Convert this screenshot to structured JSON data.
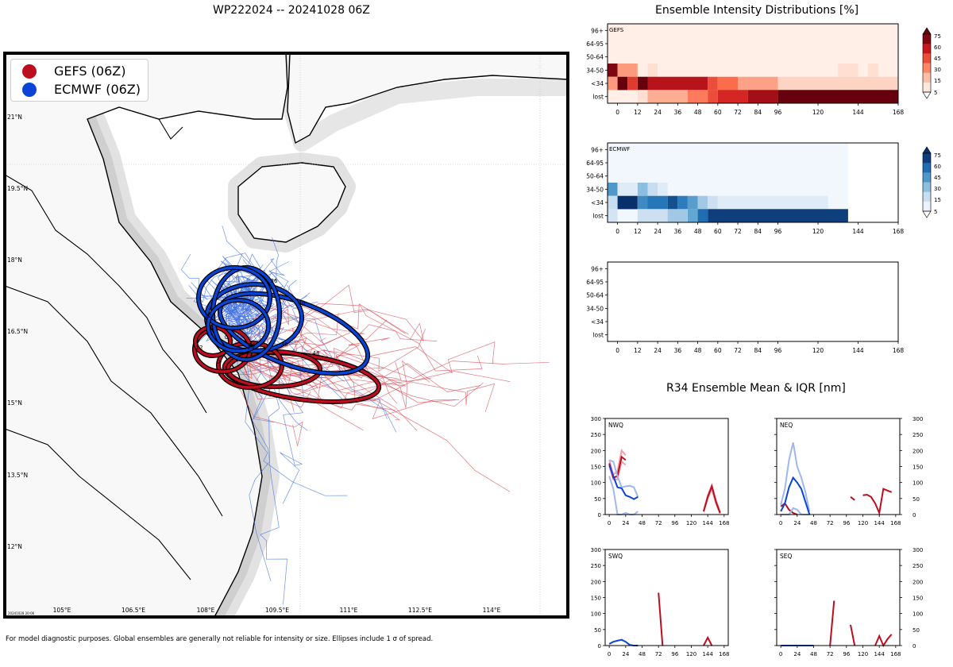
{
  "title": "WP222024 -- 20241028 06Z",
  "footnote": "For model diagnostic purposes. Global ensembles are generally not reliable for intensity or size. Ellipses include 1 σ of spread.",
  "map": {
    "legend": [
      {
        "label": "GEFS (06Z)",
        "color": "#bd0e1f"
      },
      {
        "label": "ECMWF (06Z)",
        "color": "#0a44d6"
      }
    ],
    "lat_labels": [
      "21°N",
      "19.5°N",
      "18°N",
      "16.5°N",
      "15°N",
      "13.5°N",
      "12°N"
    ],
    "lon_labels": [
      "105°E",
      "106.5°E",
      "108°E",
      "109.5°E",
      "111°E",
      "112.5°E",
      "114°E"
    ],
    "stamp": "20241028 20:06",
    "ellipse_labels": {
      "gefs": [
        "0",
        "12",
        "24",
        "36",
        "48"
      ],
      "ecmwf": [
        "0",
        "12",
        "24",
        "36",
        "48"
      ]
    }
  },
  "intensity": {
    "title": "Ensemble Intensity Distributions [%]",
    "categories": [
      "96+",
      "64-95",
      "50-64",
      "34-50",
      "<34",
      "lost"
    ],
    "x_ticks": [
      0,
      12,
      24,
      36,
      48,
      60,
      72,
      84,
      96,
      120,
      144,
      168
    ],
    "colorbar_ticks": [
      75,
      60,
      45,
      30,
      15,
      5
    ],
    "panels": [
      {
        "label": "GEFS",
        "colormap": "reds"
      },
      {
        "label": "ECMWF",
        "colormap": "blues"
      },
      {
        "label": "",
        "colormap": "none"
      }
    ]
  },
  "r34": {
    "title": "R34 Ensemble Mean & IQR [nm]",
    "x_ticks": [
      0,
      24,
      48,
      72,
      96,
      120,
      144,
      168
    ],
    "y_ticks": [
      0,
      50,
      100,
      150,
      200,
      250,
      300
    ],
    "panels": [
      {
        "label": "NWQ"
      },
      {
        "label": "NEQ"
      },
      {
        "label": "SWQ"
      },
      {
        "label": "SEQ"
      }
    ]
  },
  "chart_data": [
    {
      "type": "heatmap",
      "title": "GEFS",
      "x_unit": "forecast hour",
      "y_categories": [
        "96+",
        "64-95",
        "50-64",
        "34-50",
        "<34",
        "lost"
      ],
      "cells": [
        {
          "hours": [
            0,
            6
          ],
          "cat": "34-50",
          "pct": 80
        },
        {
          "hours": [
            6,
            18
          ],
          "cat": "34-50",
          "pct": 30
        },
        {
          "hours": [
            24,
            30
          ],
          "cat": "34-50",
          "pct": 8
        },
        {
          "hours": [
            138,
            150
          ],
          "cat": "34-50",
          "pct": 8
        },
        {
          "hours": [
            156,
            162
          ],
          "cat": "34-50",
          "pct": 8
        },
        {
          "hours": [
            0,
            6
          ],
          "cat": "<34",
          "pct": 30
        },
        {
          "hours": [
            6,
            12
          ],
          "cat": "<34",
          "pct": 85
        },
        {
          "hours": [
            12,
            18
          ],
          "cat": "<34",
          "pct": 55
        },
        {
          "hours": [
            18,
            24
          ],
          "cat": "<34",
          "pct": 85
        },
        {
          "hours": [
            24,
            60
          ],
          "cat": "<34",
          "pct": 68
        },
        {
          "hours": [
            60,
            66
          ],
          "cat": "<34",
          "pct": 50
        },
        {
          "hours": [
            66,
            78
          ],
          "cat": "<34",
          "pct": 42
        },
        {
          "hours": [
            78,
            102
          ],
          "cat": "<34",
          "pct": 28
        },
        {
          "hours": [
            102,
            174
          ],
          "cat": "<34",
          "pct": 12
        },
        {
          "hours": [
            18,
            24
          ],
          "cat": "lost",
          "pct": 8
        },
        {
          "hours": [
            24,
            48
          ],
          "cat": "lost",
          "pct": 25
        },
        {
          "hours": [
            48,
            60
          ],
          "cat": "lost",
          "pct": 38
        },
        {
          "hours": [
            60,
            66
          ],
          "cat": "lost",
          "pct": 50
        },
        {
          "hours": [
            66,
            84
          ],
          "cat": "lost",
          "pct": 60
        },
        {
          "hours": [
            84,
            102
          ],
          "cat": "lost",
          "pct": 72
        },
        {
          "hours": [
            102,
            174
          ],
          "cat": "lost",
          "pct": 88
        }
      ]
    },
    {
      "type": "heatmap",
      "title": "ECMWF",
      "x_unit": "forecast hour",
      "y_categories": [
        "96+",
        "64-95",
        "50-64",
        "34-50",
        "<34",
        "lost"
      ],
      "cells": [
        {
          "hours": [
            0,
            6
          ],
          "cat": "34-50",
          "pct": 50
        },
        {
          "hours": [
            6,
            18
          ],
          "cat": "34-50",
          "pct": 10
        },
        {
          "hours": [
            18,
            24
          ],
          "cat": "34-50",
          "pct": 35
        },
        {
          "hours": [
            24,
            30
          ],
          "cat": "34-50",
          "pct": 20
        },
        {
          "hours": [
            30,
            36
          ],
          "cat": "34-50",
          "pct": 10
        },
        {
          "hours": [
            0,
            6
          ],
          "cat": "<34",
          "pct": 20
        },
        {
          "hours": [
            6,
            18
          ],
          "cat": "<34",
          "pct": 85
        },
        {
          "hours": [
            18,
            24
          ],
          "cat": "<34",
          "pct": 55
        },
        {
          "hours": [
            24,
            36
          ],
          "cat": "<34",
          "pct": 62
        },
        {
          "hours": [
            36,
            42
          ],
          "cat": "<34",
          "pct": 75
        },
        {
          "hours": [
            42,
            48
          ],
          "cat": "<34",
          "pct": 60
        },
        {
          "hours": [
            48,
            54
          ],
          "cat": "<34",
          "pct": 48
        },
        {
          "hours": [
            54,
            60
          ],
          "cat": "<34",
          "pct": 30
        },
        {
          "hours": [
            60,
            66
          ],
          "cat": "<34",
          "pct": 18
        },
        {
          "hours": [
            66,
            132
          ],
          "cat": "<34",
          "pct": 10
        },
        {
          "hours": [
            0,
            6
          ],
          "cat": "lost",
          "pct": 15
        },
        {
          "hours": [
            18,
            36
          ],
          "cat": "lost",
          "pct": 18
        },
        {
          "hours": [
            36,
            48
          ],
          "cat": "lost",
          "pct": 30
        },
        {
          "hours": [
            48,
            54
          ],
          "cat": "lost",
          "pct": 45
        },
        {
          "hours": [
            54,
            60
          ],
          "cat": "lost",
          "pct": 65
        },
        {
          "hours": [
            60,
            144
          ],
          "cat": "lost",
          "pct": 80
        }
      ]
    },
    {
      "type": "heatmap",
      "title": "",
      "y_categories": [
        "96+",
        "64-95",
        "50-64",
        "34-50",
        "<34",
        "lost"
      ],
      "cells": []
    },
    {
      "type": "line",
      "title": "NWQ",
      "ylim": [
        0,
        300
      ],
      "series": [
        {
          "model": "GEFS",
          "x": [
            0,
            6,
            12,
            18,
            24
          ],
          "mean": [
            160,
            115,
            120,
            180,
            170
          ],
          "iqr_low": [
            150,
            110,
            110,
            165,
            155
          ],
          "iqr_high": [
            170,
            125,
            135,
            200,
            185
          ]
        },
        {
          "model": "GEFS",
          "x": [
            138,
            144,
            150,
            156,
            162
          ],
          "mean": [
            10,
            55,
            88,
            40,
            5
          ],
          "iqr_low": [
            8,
            50,
            80,
            35,
            3
          ],
          "iqr_high": [
            12,
            60,
            92,
            45,
            8
          ]
        },
        {
          "model": "ECMWF",
          "x": [
            0,
            6,
            12,
            18,
            24,
            30,
            36,
            42
          ],
          "mean": [
            155,
            120,
            85,
            82,
            60,
            55,
            48,
            55
          ],
          "iqr_low": [
            120,
            80,
            0,
            0,
            5,
            0,
            0,
            10
          ],
          "iqr_high": [
            170,
            165,
            120,
            85,
            88,
            90,
            85,
            55
          ]
        }
      ]
    },
    {
      "type": "line",
      "title": "NEQ",
      "ylim": [
        0,
        300
      ],
      "series": [
        {
          "model": "GEFS",
          "x": [
            0,
            6,
            12,
            18,
            24
          ],
          "mean": [
            25,
            35,
            15,
            5,
            0
          ]
        },
        {
          "model": "GEFS",
          "x": [
            102,
            108
          ],
          "mean": [
            55,
            45
          ]
        },
        {
          "model": "GEFS",
          "x": [
            120,
            126,
            132,
            138,
            144,
            150,
            156,
            162
          ],
          "mean": [
            60,
            62,
            55,
            35,
            5,
            80,
            75,
            70
          ]
        },
        {
          "model": "ECMWF",
          "x": [
            0,
            6,
            12,
            18,
            24,
            30,
            36,
            42
          ],
          "mean": [
            10,
            35,
            85,
            115,
            100,
            80,
            40,
            0
          ],
          "iqr_low": [
            0,
            0,
            0,
            20,
            15,
            0,
            0,
            0
          ],
          "iqr_high": [
            30,
            80,
            170,
            225,
            150,
            115,
            70,
            10
          ]
        }
      ]
    },
    {
      "type": "line",
      "title": "SWQ",
      "ylim": [
        0,
        300
      ],
      "series": [
        {
          "model": "GEFS",
          "x": [
            72,
            78
          ],
          "mean": [
            165,
            0
          ]
        },
        {
          "model": "GEFS",
          "x": [
            138,
            144,
            150
          ],
          "mean": [
            0,
            25,
            0
          ]
        },
        {
          "model": "ECMWF",
          "x": [
            0,
            6,
            12,
            18,
            24,
            30,
            36,
            42
          ],
          "mean": [
            5,
            12,
            15,
            18,
            12,
            2,
            0,
            0
          ]
        }
      ]
    },
    {
      "type": "line",
      "title": "SEQ",
      "ylim": [
        0,
        300
      ],
      "series": [
        {
          "model": "GEFS",
          "x": [
            72,
            78
          ],
          "mean": [
            0,
            140
          ]
        },
        {
          "model": "GEFS",
          "x": [
            102,
            108
          ],
          "mean": [
            65,
            0
          ]
        },
        {
          "model": "GEFS",
          "x": [
            138,
            144,
            150,
            156,
            162
          ],
          "mean": [
            0,
            30,
            0,
            20,
            35
          ]
        },
        {
          "model": "ECMWF",
          "x": [
            0,
            24,
            48
          ],
          "mean": [
            0,
            0,
            0
          ]
        }
      ]
    }
  ]
}
